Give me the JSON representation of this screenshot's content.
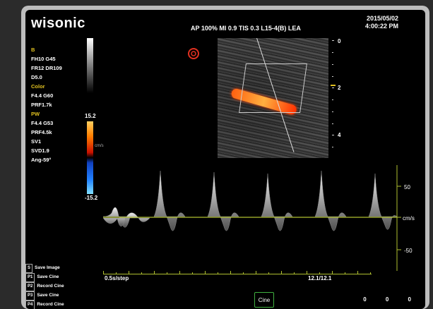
{
  "brand": "wisonic",
  "header": {
    "info": "AP 100%  MI 0.9   TIS 0.3  L15-4(B)  LEA",
    "date": "2015/05/02",
    "time": "4:00:22 PM"
  },
  "params": {
    "b_title": "B",
    "b1": "FH10   G45",
    "b2": "FR12   DR109",
    "b3": "D5.0",
    "color_title": "Color",
    "c1": "F4.4   G60",
    "c2": "PRF1.7k",
    "pw_title": "PW",
    "p1": "F4.4   G53",
    "p2": "PRF4.5k",
    "p3": "SV1",
    "p4": "SVD1.9",
    "p5": "Ang-59°"
  },
  "color_scale": {
    "top": "15.2",
    "bottom": "-15.2",
    "unit": "cm/s"
  },
  "depth_scale": {
    "labels": [
      "0",
      "2",
      "4"
    ]
  },
  "velocity_scale": {
    "labels": [
      "50",
      "cm/s",
      "-50"
    ]
  },
  "sweep": {
    "speed": "0.5s/step",
    "frame": "12.1/12.1"
  },
  "status": [
    {
      "key": "S",
      "label": "Save Image"
    },
    {
      "key": "P1",
      "label": "Save Cine"
    },
    {
      "key": "P2",
      "label": "Record Cine"
    },
    {
      "key": "P3",
      "label": "Save Cine"
    },
    {
      "key": "P4",
      "label": "Record Cine"
    }
  ],
  "cine_label": "Cine",
  "bottom_values": "0 0 0",
  "colors": {
    "accent": "#e0c020",
    "baseline": "#b0c030",
    "cine_border": "#40b040"
  }
}
